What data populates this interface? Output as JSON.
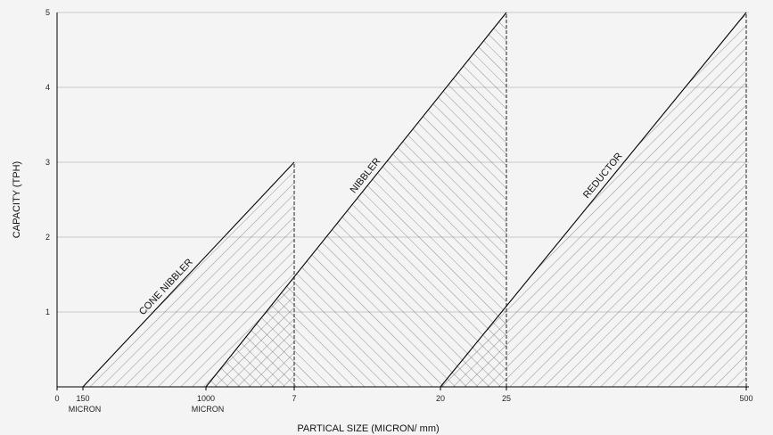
{
  "chart_data": {
    "type": "area",
    "title": "",
    "xlabel": "PARTICAL SIZE (MICRON/ mm)",
    "ylabel": "CAPACITY (TPH)",
    "ylim": [
      0,
      5
    ],
    "yticks": [
      "1",
      "2",
      "3",
      "4",
      "5"
    ],
    "x_axis_scale": "categorical, not to scale",
    "xticks": [
      {
        "label": "0",
        "sublabel": ""
      },
      {
        "label": "150",
        "sublabel": "MICRON"
      },
      {
        "label": "1000",
        "sublabel": "MICRON"
      },
      {
        "label": "7",
        "sublabel": ""
      },
      {
        "label": "20",
        "sublabel": ""
      },
      {
        "label": "25",
        "sublabel": ""
      },
      {
        "label": "500",
        "sublabel": ""
      }
    ],
    "grid": "horizontal",
    "series": [
      {
        "name": "CONE NIBBLER",
        "x": [
          "150 MICRON",
          "7"
        ],
        "y": [
          0,
          3
        ],
        "color": "#000000"
      },
      {
        "name": "NIBBLER",
        "x": [
          "1000 MICRON",
          "25"
        ],
        "y": [
          0,
          5
        ],
        "color": "#000000"
      },
      {
        "name": "REDUCTOR",
        "x": [
          "20",
          "500"
        ],
        "y": [
          0,
          5
        ],
        "color": "#000000"
      }
    ],
    "fill": "diagonal hatch, cross-hatch where regions overlap"
  }
}
